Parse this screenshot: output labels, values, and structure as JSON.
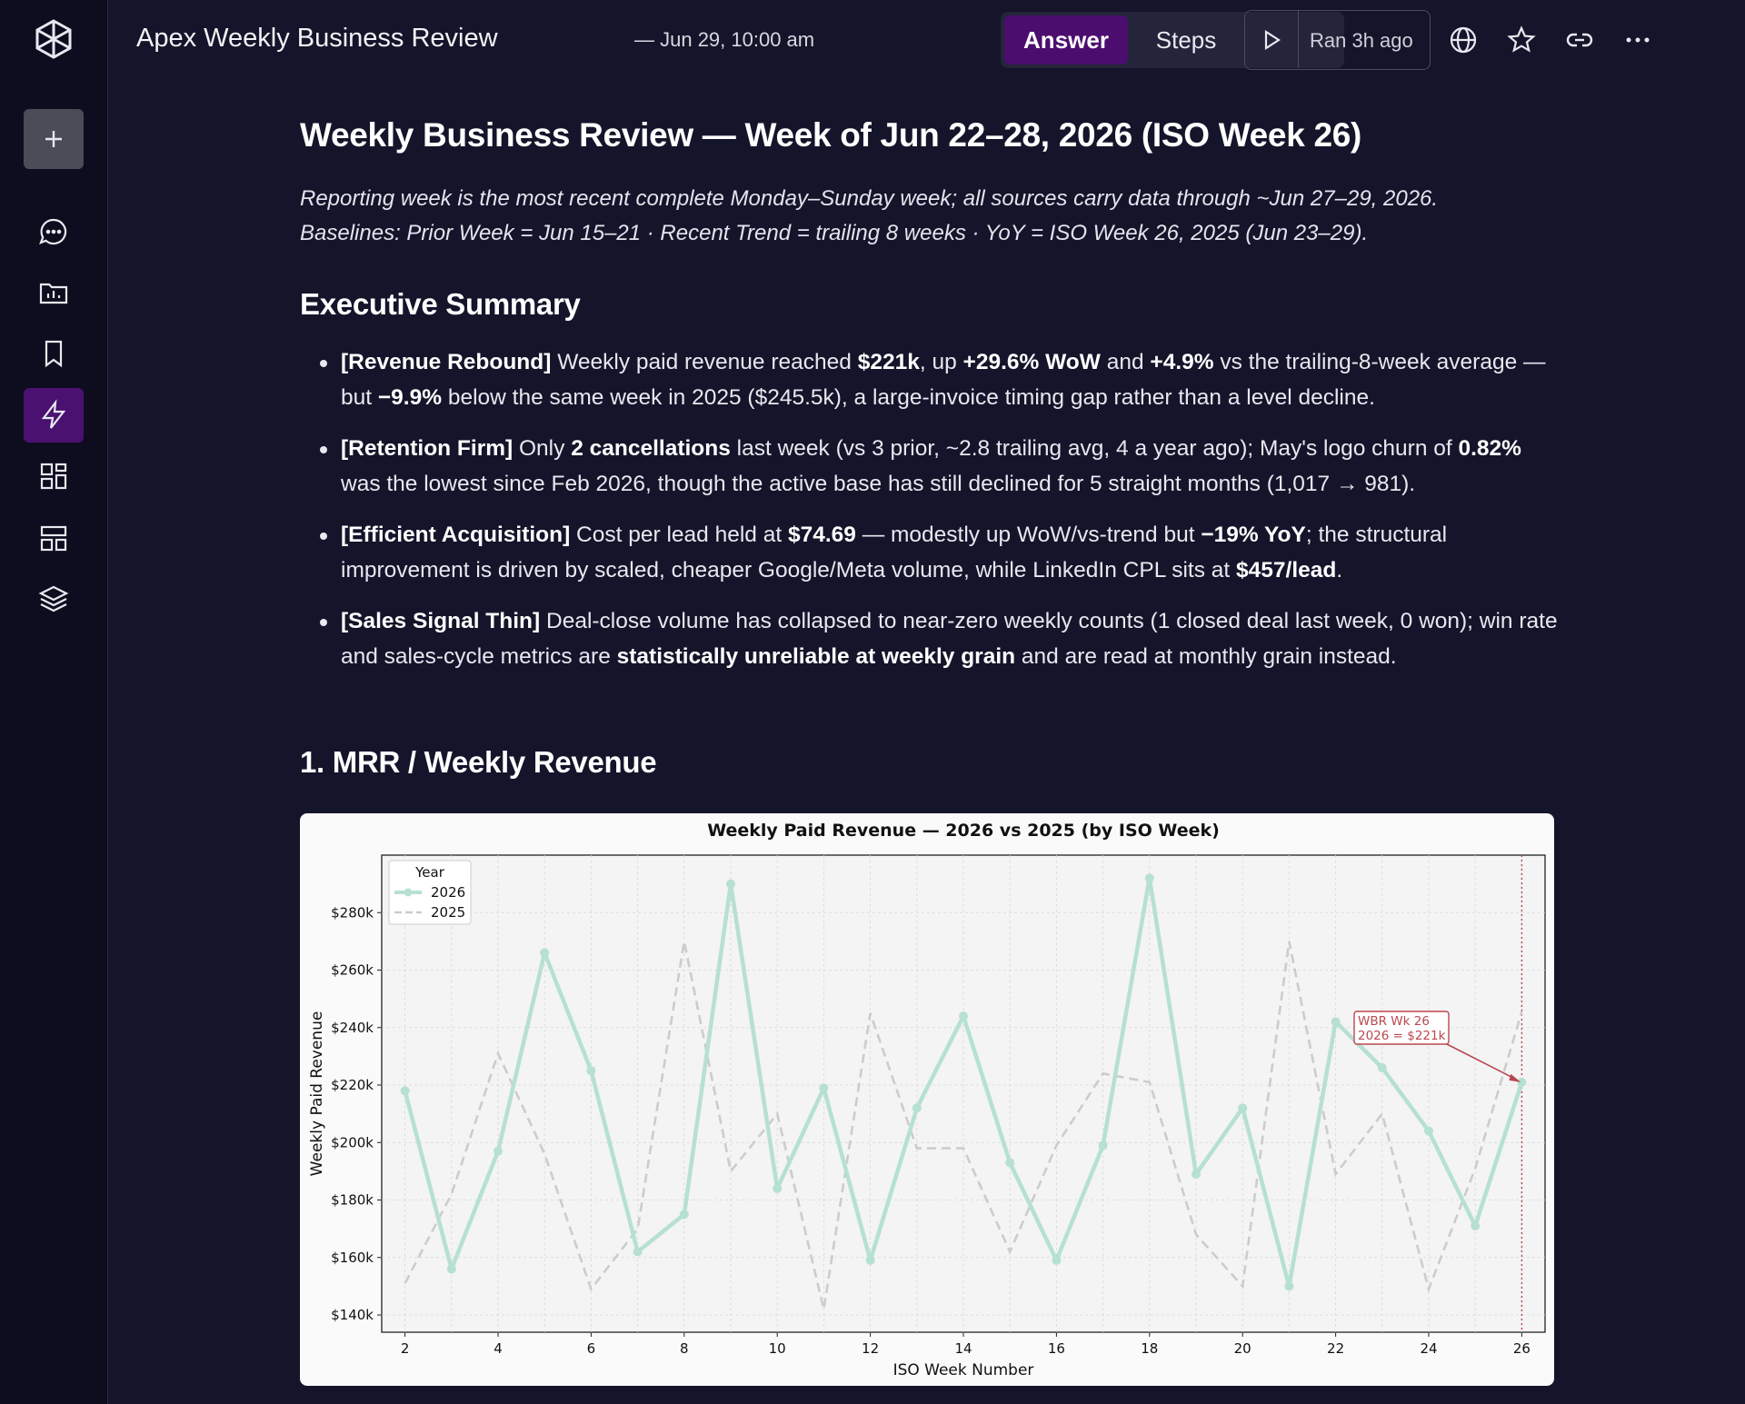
{
  "header": {
    "title": "Apex Weekly Business Review",
    "subtitle": "—  Jun 29, 10:00 am",
    "tab_answer": "Answer",
    "tab_steps": "Steps",
    "ran": "Ran 3h ago"
  },
  "sidebar": {
    "items": [
      "new-thread",
      "chat",
      "library",
      "bookmarks",
      "automations",
      "dashboards",
      "layouts",
      "stacks"
    ]
  },
  "doc": {
    "title": "Weekly Business Review — Week of Jun 22–28, 2026 (ISO Week 26)",
    "intro_line1": "Reporting week is the most recent complete Monday–Sunday week; all sources carry data through ~Jun 27–29, 2026.",
    "intro_line2": "Baselines: Prior Week = Jun 15–21 · Recent Trend = trailing 8 weeks · YoY = ISO Week 26, 2025 (Jun 23–29).",
    "exec_heading": "Executive Summary",
    "section1_heading": "1. MRR / Weekly Revenue",
    "bullets": [
      {
        "tag": "[Revenue Rebound]",
        "t1": " Weekly paid revenue reached ",
        "b1": "$221k",
        "t2": ", up ",
        "b2": "+29.6% WoW",
        "t3": " and ",
        "b3": "+4.9%",
        "t4": " vs the trailing-8-week average — but ",
        "b4": "−9.9%",
        "t5": " below the same week in 2025 ($245.5k), a large-invoice timing gap rather than a level decline."
      },
      {
        "tag": "[Retention Firm]",
        "t1": " Only ",
        "b1": "2 cancellations",
        "t2": " last week (vs 3 prior, ~2.8 trailing avg, 4 a year ago); May's logo churn of ",
        "b2": "0.82%",
        "t3": " was the lowest since Feb 2026, though the active base has still declined for 5 straight months (1,017 → 981)."
      },
      {
        "tag": "[Efficient Acquisition]",
        "t1": " Cost per lead held at ",
        "b1": "$74.69",
        "t2": " — modestly up WoW/vs-trend but ",
        "b2": "−19% YoY",
        "t3": "; the structural improvement is driven by scaled, cheaper Google/Meta volume, while LinkedIn CPL sits at ",
        "b3": "$457/lead",
        "t4": "."
      },
      {
        "tag": "[Sales Signal Thin]",
        "t1": " Deal-close volume has collapsed to near-zero weekly counts (1 closed deal last week, 0 won); win rate and sales-cycle metrics are ",
        "b1": "statistically unreliable at weekly grain",
        "t2": " and are read at monthly grain instead."
      }
    ]
  },
  "chart_data": {
    "type": "line",
    "title": "Weekly Paid Revenue — 2026 vs 2025 (by ISO Week)",
    "xlabel": "ISO Week Number",
    "ylabel": "Weekly Paid Revenue",
    "xlim": [
      1.5,
      26.5
    ],
    "ylim": [
      134000,
      300000
    ],
    "xticks": [
      2,
      4,
      6,
      8,
      10,
      12,
      14,
      16,
      18,
      20,
      22,
      24,
      26
    ],
    "yticks": [
      140000,
      160000,
      180000,
      200000,
      220000,
      240000,
      260000,
      280000
    ],
    "ytick_labels": [
      "$140k",
      "$160k",
      "$180k",
      "$200k",
      "$220k",
      "$240k",
      "$260k",
      "$280k"
    ],
    "grid": true,
    "legend_title": "Year",
    "legend_position": "top-left",
    "x": [
      2,
      3,
      4,
      5,
      6,
      7,
      8,
      9,
      10,
      11,
      12,
      13,
      14,
      15,
      16,
      17,
      18,
      19,
      20,
      21,
      22,
      23,
      24,
      25,
      26
    ],
    "series": [
      {
        "name": "2026",
        "color": "#b6e0d2",
        "style": "solid-markers",
        "values": [
          218000,
          156000,
          197000,
          266000,
          225000,
          162000,
          175000,
          290000,
          184000,
          219000,
          159000,
          212000,
          244000,
          193000,
          159000,
          199000,
          292000,
          189000,
          212000,
          150000,
          242000,
          226000,
          204000,
          171000,
          221000
        ]
      },
      {
        "name": "2025",
        "color": "#cccccc",
        "style": "dashed",
        "values": [
          151000,
          182000,
          231000,
          196000,
          149000,
          170000,
          270000,
          190000,
          210000,
          142000,
          245000,
          198000,
          198000,
          162000,
          199000,
          224000,
          221000,
          168000,
          150000,
          270000,
          189000,
          210000,
          149000,
          191000,
          245500
        ]
      }
    ],
    "vline_x": 26,
    "annotation": {
      "line1": "WBR Wk 26",
      "line2": "2026 = $221k",
      "target_x": 26,
      "target_y": 221000
    }
  }
}
